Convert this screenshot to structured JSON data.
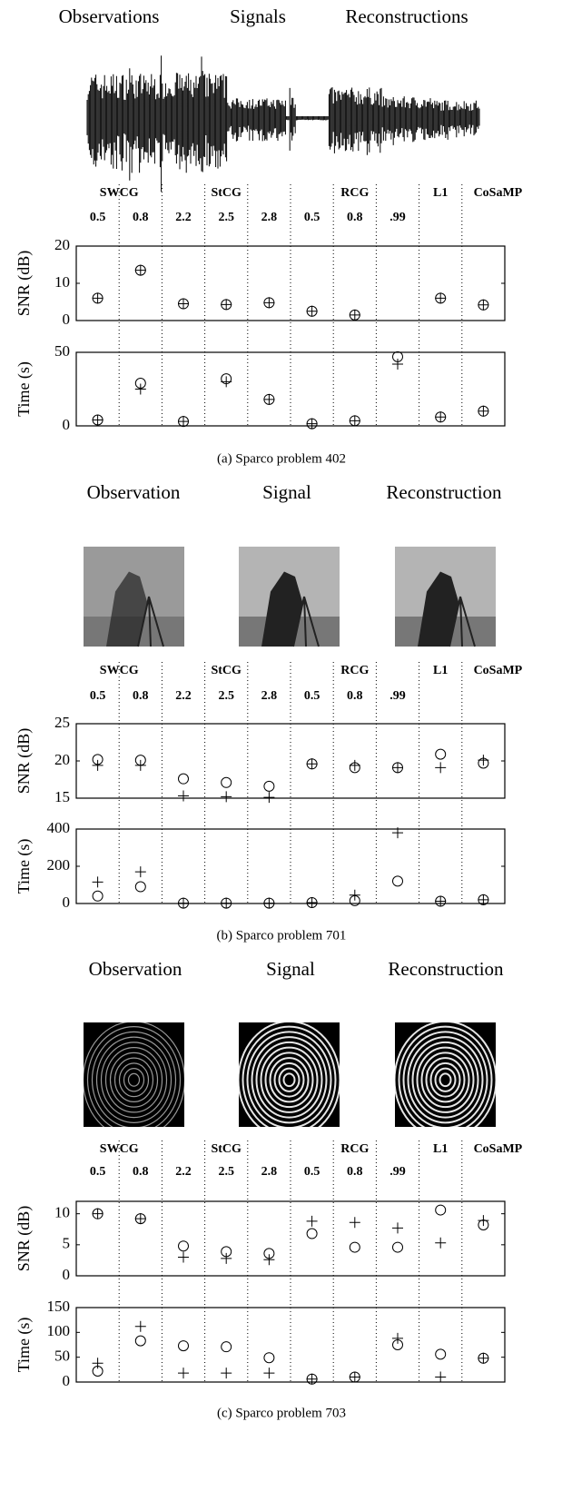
{
  "panels": [
    {
      "image_titles": [
        "Observations",
        "Signals",
        "Reconstructions"
      ],
      "methods": [
        "SWCG",
        "StCG",
        "RCG",
        "L1",
        "CoSaMP"
      ],
      "parameters": [
        "0.5",
        "0.8",
        "2.2",
        "2.5",
        "2.8",
        "0.5",
        "0.8",
        ".99"
      ],
      "caption": "(a) Sparco problem 402"
    },
    {
      "image_titles": [
        "Observation",
        "Signal",
        "Reconstruction"
      ],
      "methods": [
        "SWCG",
        "StCG",
        "RCG",
        "L1",
        "CoSaMP"
      ],
      "parameters": [
        "0.5",
        "0.8",
        "2.2",
        "2.5",
        "2.8",
        "0.5",
        "0.8",
        ".99"
      ],
      "caption": "(b) Sparco problem 701"
    },
    {
      "image_titles": [
        "Observation",
        "Signal",
        "Reconstruction"
      ],
      "methods": [
        "SWCG",
        "StCG",
        "RCG",
        "L1",
        "CoSaMP"
      ],
      "parameters": [
        "0.5",
        "0.8",
        "2.2",
        "2.5",
        "2.8",
        "0.5",
        "0.8",
        ".99"
      ],
      "caption": "(c) Sparco problem 703"
    }
  ],
  "chart_data": [
    {
      "type": "scatter",
      "ylabel": "SNR (dB)",
      "x": [
        1,
        2,
        3,
        4,
        5,
        6,
        7,
        8,
        9,
        10
      ],
      "xlim": [
        0.5,
        10.5
      ],
      "ylim": [
        0,
        20
      ],
      "yticks": [
        0,
        10,
        20
      ],
      "series": [
        {
          "marker": "circle",
          "color": "#000000",
          "values": [
            6,
            13.5,
            4.5,
            4.3,
            4.8,
            2.5,
            1.5,
            null,
            6,
            4.2
          ]
        },
        {
          "marker": "plus",
          "color": "#000000",
          "values": [
            6,
            13.5,
            4.5,
            4.3,
            4.8,
            2.5,
            1.5,
            null,
            6,
            4.2
          ]
        }
      ]
    },
    {
      "type": "scatter",
      "ylabel": "Time (s)",
      "x": [
        1,
        2,
        3,
        4,
        5,
        6,
        7,
        8,
        9,
        10
      ],
      "xlim": [
        0.5,
        10.5
      ],
      "ylim": [
        0,
        50
      ],
      "yticks": [
        0,
        50
      ],
      "series": [
        {
          "marker": "circle",
          "color": "#000000",
          "values": [
            4,
            29,
            3,
            32,
            18,
            1.5,
            3.5,
            47,
            6,
            10
          ]
        },
        {
          "marker": "plus",
          "color": "#000000",
          "values": [
            4,
            25,
            3,
            30,
            18,
            1.5,
            3.5,
            42,
            6,
            10
          ]
        }
      ]
    },
    {
      "type": "scatter",
      "ylabel": "SNR (dB)",
      "x": [
        1,
        2,
        3,
        4,
        5,
        6,
        7,
        8,
        9,
        10
      ],
      "xlim": [
        0.5,
        10.5
      ],
      "ylim": [
        15,
        25
      ],
      "yticks": [
        15,
        20,
        25
      ],
      "series": [
        {
          "marker": "circle",
          "color": "#000000",
          "values": [
            20.2,
            20.1,
            17.6,
            17.1,
            16.6,
            19.6,
            19.1,
            19.1,
            20.9,
            19.7
          ]
        },
        {
          "marker": "plus",
          "color": "#000000",
          "values": [
            19.4,
            19.4,
            15.3,
            15.2,
            15.1,
            19.6,
            19.4,
            19.1,
            19.1,
            20.1
          ]
        }
      ]
    },
    {
      "type": "scatter",
      "ylabel": "Time (s)",
      "x": [
        1,
        2,
        3,
        4,
        5,
        6,
        7,
        8,
        9,
        10
      ],
      "xlim": [
        0.5,
        10.5
      ],
      "ylim": [
        0,
        400
      ],
      "yticks": [
        0,
        200,
        400
      ],
      "series": [
        {
          "marker": "circle",
          "color": "#000000",
          "values": [
            40,
            90,
            2,
            2,
            2,
            5,
            15,
            120,
            12,
            20
          ]
        },
        {
          "marker": "plus",
          "color": "#000000",
          "values": [
            115,
            170,
            2,
            2,
            2,
            5,
            45,
            380,
            12,
            20
          ]
        }
      ]
    },
    {
      "type": "scatter",
      "ylabel": "SNR (dB)",
      "x": [
        1,
        2,
        3,
        4,
        5,
        6,
        7,
        8,
        9,
        10
      ],
      "xlim": [
        0.5,
        10.5
      ],
      "ylim": [
        0,
        12
      ],
      "yticks": [
        0,
        5,
        10
      ],
      "series": [
        {
          "marker": "circle",
          "color": "#000000",
          "values": [
            10,
            9.2,
            4.8,
            3.9,
            3.6,
            6.8,
            4.6,
            4.6,
            10.6,
            8.2
          ]
        },
        {
          "marker": "plus",
          "color": "#000000",
          "values": [
            10,
            9.2,
            3,
            2.8,
            2.6,
            8.8,
            8.6,
            7.7,
            5.3,
            8.9
          ]
        }
      ]
    },
    {
      "type": "scatter",
      "ylabel": "Time (s)",
      "x": [
        1,
        2,
        3,
        4,
        5,
        6,
        7,
        8,
        9,
        10
      ],
      "xlim": [
        0.5,
        10.5
      ],
      "ylim": [
        0,
        150
      ],
      "yticks": [
        0,
        50,
        100,
        150
      ],
      "series": [
        {
          "marker": "circle",
          "color": "#000000",
          "values": [
            22,
            83,
            73,
            71,
            49,
            6,
            10,
            75,
            56,
            48
          ]
        },
        {
          "marker": "plus",
          "color": "#000000",
          "values": [
            38,
            112,
            18,
            18,
            18,
            6,
            10,
            88,
            10,
            48
          ]
        }
      ]
    }
  ]
}
